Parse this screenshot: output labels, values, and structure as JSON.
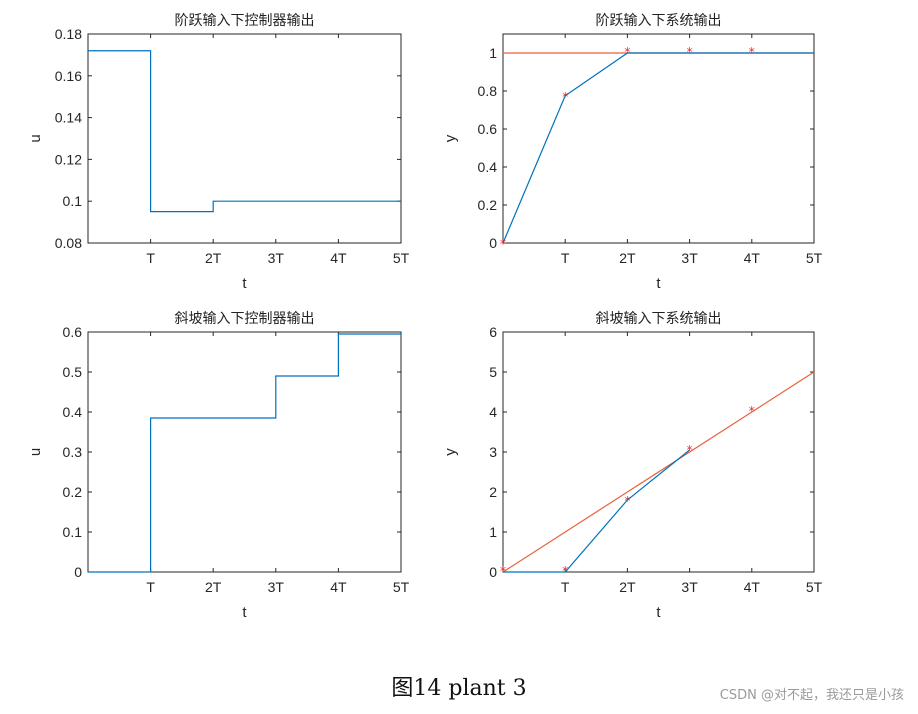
{
  "caption": "图14 plant 3",
  "watermark": "CSDN @对不起，我还只是小孩",
  "colors": {
    "blue": "#0072bd",
    "orange": "#e8603c",
    "marker": "#ff2020",
    "axis": "#262626"
  },
  "chart_data": [
    {
      "type": "line",
      "title": "阶跃输入下控制器输出",
      "xlabel": "t",
      "ylabel": "u",
      "xlim": [
        0,
        5
      ],
      "ylim": [
        0.08,
        0.18
      ],
      "xticks": [
        1,
        2,
        3,
        4,
        5
      ],
      "xticklabels": [
        "T",
        "2T",
        "3T",
        "4T",
        "5T"
      ],
      "yticks": [
        0.08,
        0.1,
        0.12,
        0.14,
        0.16,
        0.18
      ],
      "yticklabels": [
        "0.08",
        "0.1",
        "0.12",
        "0.14",
        "0.16",
        "0.18"
      ],
      "series": [
        {
          "style": "step",
          "color": "blue",
          "x": [
            0,
            1,
            2,
            3,
            4,
            5
          ],
          "y": [
            0.172,
            0.095,
            0.1,
            0.1,
            0.1,
            0.1
          ]
        }
      ]
    },
    {
      "type": "line",
      "title": "阶跃输入下系统输出",
      "xlabel": "t",
      "ylabel": "y",
      "xlim": [
        0,
        5
      ],
      "ylim": [
        0,
        1.1
      ],
      "xticks": [
        1,
        2,
        3,
        4,
        5
      ],
      "xticklabels": [
        "T",
        "2T",
        "3T",
        "4T",
        "5T"
      ],
      "yticks": [
        0,
        0.2,
        0.4,
        0.6,
        0.8,
        1
      ],
      "yticklabels": [
        "0",
        "0.2",
        "0.4",
        "0.6",
        "0.8",
        "1"
      ],
      "series": [
        {
          "style": "line",
          "color": "orange",
          "x": [
            0,
            5
          ],
          "y": [
            1,
            1
          ]
        },
        {
          "style": "line",
          "color": "blue",
          "x": [
            0,
            1,
            2,
            3,
            4,
            5
          ],
          "y": [
            0,
            0.775,
            1.0,
            1.0,
            1.0,
            1.0
          ]
        },
        {
          "style": "markers",
          "color": "marker",
          "x": [
            0,
            1,
            2,
            3,
            4
          ],
          "y": [
            0,
            0.775,
            1.01,
            1.01,
            1.01
          ]
        }
      ]
    },
    {
      "type": "line",
      "title": "斜坡输入下控制器输出",
      "xlabel": "t",
      "ylabel": "u",
      "xlim": [
        0,
        5
      ],
      "ylim": [
        0,
        0.6
      ],
      "xticks": [
        1,
        2,
        3,
        4,
        5
      ],
      "xticklabels": [
        "T",
        "2T",
        "3T",
        "4T",
        "5T"
      ],
      "yticks": [
        0,
        0.1,
        0.2,
        0.3,
        0.4,
        0.5,
        0.6
      ],
      "yticklabels": [
        "0",
        "0.1",
        "0.2",
        "0.3",
        "0.4",
        "0.5",
        "0.6"
      ],
      "series": [
        {
          "style": "step",
          "color": "blue",
          "x": [
            0,
            1,
            2,
            3,
            4,
            5
          ],
          "y": [
            0,
            0.385,
            0.385,
            0.49,
            0.595,
            0.595
          ]
        }
      ]
    },
    {
      "type": "line",
      "title": "斜坡输入下系统输出",
      "xlabel": "t",
      "ylabel": "y",
      "xlim": [
        0,
        5
      ],
      "ylim": [
        0,
        6
      ],
      "xticks": [
        1,
        2,
        3,
        4,
        5
      ],
      "xticklabels": [
        "T",
        "2T",
        "3T",
        "4T",
        "5T"
      ],
      "yticks": [
        0,
        1,
        2,
        3,
        4,
        5,
        6
      ],
      "yticklabels": [
        "0",
        "1",
        "2",
        "3",
        "4",
        "5",
        "6"
      ],
      "series": [
        {
          "style": "line",
          "color": "orange",
          "x": [
            0,
            5
          ],
          "y": [
            0,
            5
          ]
        },
        {
          "style": "line",
          "color": "blue",
          "x": [
            0,
            1,
            2,
            3
          ],
          "y": [
            0,
            0,
            1.8,
            3.05
          ]
        },
        {
          "style": "markers",
          "color": "marker",
          "x": [
            0,
            1,
            2,
            3,
            4
          ],
          "y": [
            0.05,
            0.05,
            1.8,
            3.08,
            4.05
          ]
        }
      ]
    }
  ]
}
